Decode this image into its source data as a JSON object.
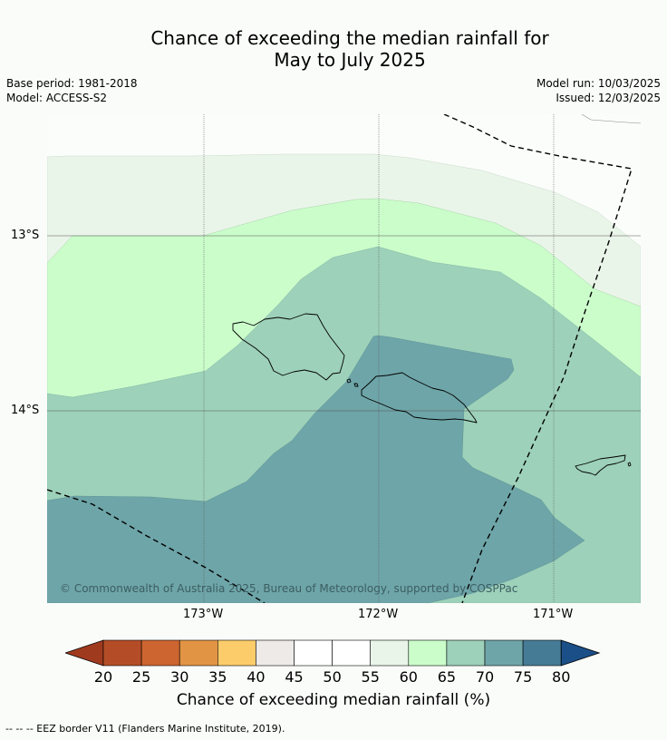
{
  "title": {
    "line1": "Chance of exceeding the median rainfall for",
    "line2": "May to July 2025"
  },
  "meta": {
    "base_period": "Base period: 1981-2018",
    "model": "Model: ACCESS-S2",
    "model_run": "Model run: 10/03/2025",
    "issued": "Issued: 12/03/2025"
  },
  "axes": {
    "lat_labels": [
      "13°S",
      "14°S"
    ],
    "lon_labels": [
      "173°W",
      "172°W",
      "171°W"
    ]
  },
  "colorbar": {
    "ticks": [
      "20",
      "25",
      "30",
      "35",
      "40",
      "45",
      "50",
      "55",
      "60",
      "65",
      "70",
      "75",
      "80"
    ],
    "colors": [
      "#a03a1f",
      "#b44d27",
      "#cd6530",
      "#e29445",
      "#fdcc6a",
      "#edeae7",
      "#ffffff",
      "#ffffff",
      "#eaf5ea",
      "#cbfdcb",
      "#9dd1b9",
      "#6ea5a8",
      "#467b96",
      "#1b4f88"
    ],
    "label": "Chance of exceeding median rainfall (%)"
  },
  "copyright": "© Commonwealth of Australia 2025, Bureau of Meteorology, supported by COSPPac",
  "footer": "--  --  -- EEZ border V11 (Flanders Marine Institute, 2019)."
}
